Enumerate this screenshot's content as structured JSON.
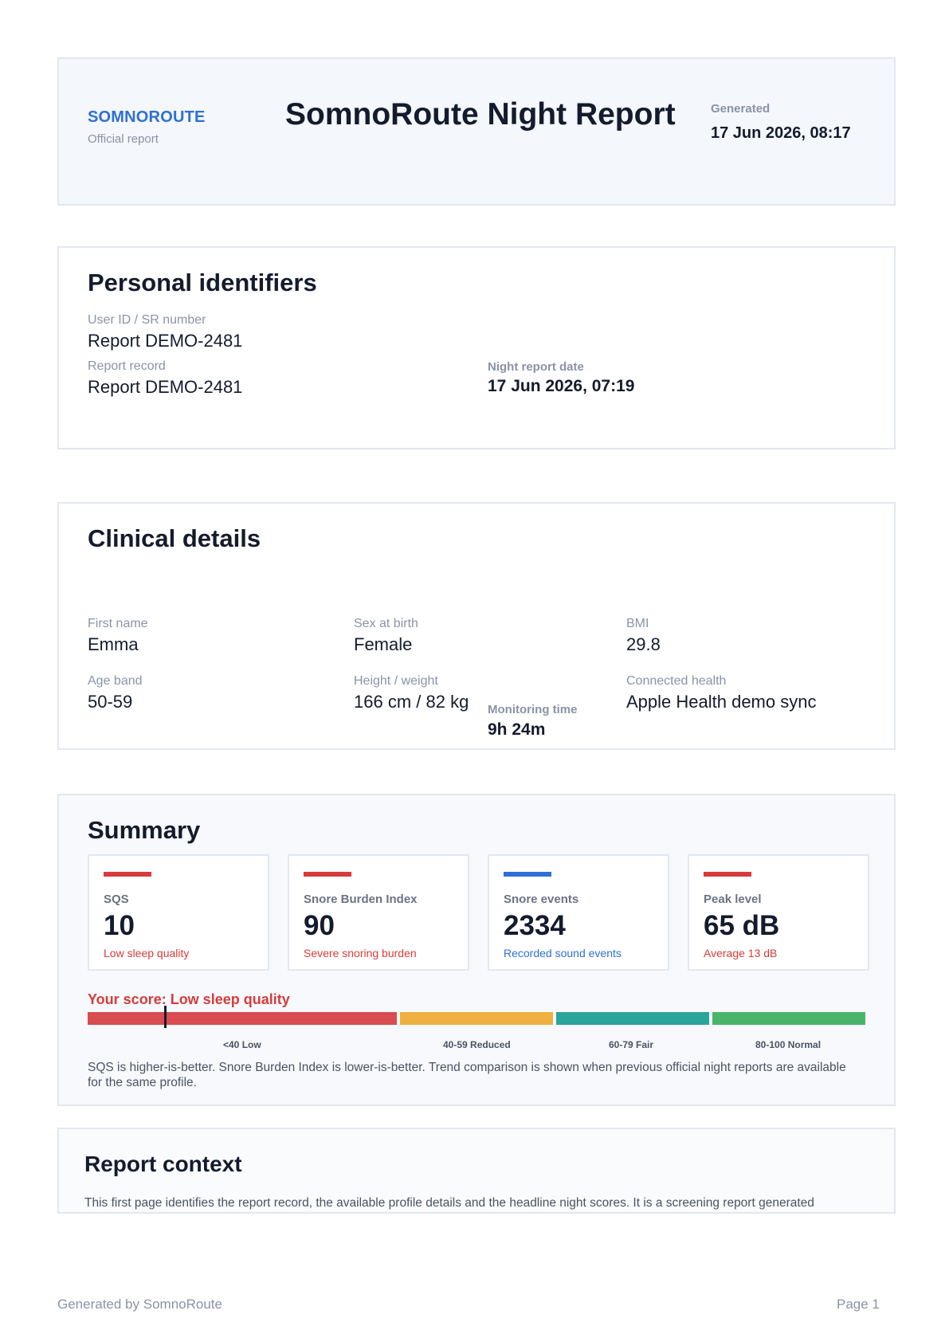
{
  "header": {
    "brand": "SOMNOROUTE",
    "brand_sub": "Official report",
    "title": "SomnoRoute Night Report",
    "generated_label": "Generated",
    "generated_value": "17 Jun 2026, 08:17"
  },
  "personal": {
    "title": "Personal identifiers",
    "user_id_label": "User ID / SR number",
    "user_id_value": "Report DEMO-2481",
    "record_label": "Report record",
    "record_value": "Report DEMO-2481",
    "night_date_label": "Night report date",
    "night_date_value": "17 Jun 2026, 07:19"
  },
  "clinical": {
    "title": "Clinical details",
    "first_name_label": "First name",
    "first_name_value": "Emma",
    "sex_label": "Sex at birth",
    "sex_value": "Female",
    "bmi_label": "BMI",
    "bmi_value": "29.8",
    "age_label": "Age band",
    "age_value": "50-59",
    "hw_label": "Height / weight",
    "hw_value": "166 cm / 82 kg",
    "monitoring_label": "Monitoring time",
    "monitoring_value": "9h 24m",
    "health_label": "Connected health",
    "health_value": "Apple Health demo sync"
  },
  "summary": {
    "title": "Summary",
    "cards": [
      {
        "label": "SQS",
        "value": "10",
        "note": "Low sleep quality",
        "accent": "#d83b3b",
        "note_color": "#d83b3b"
      },
      {
        "label": "Snore Burden Index",
        "value": "90",
        "note": "Severe snoring burden",
        "accent": "#d83b3b",
        "note_color": "#d83b3b"
      },
      {
        "label": "Snore events",
        "value": "2334",
        "note": "Recorded sound events",
        "accent": "#2f6fd6",
        "note_color": "#2f6fd6"
      },
      {
        "label": "Peak level",
        "value": "65 dB",
        "note": "Average 13 dB",
        "accent": "#d83b3b",
        "note_color": "#d83b3b"
      }
    ],
    "score_label": "Your score: Low sleep quality",
    "score_value": 10,
    "ranges": [
      {
        "label": "<40 Low",
        "color": "#d94c4f"
      },
      {
        "label": "40-59 Reduced",
        "color": "#eeb040"
      },
      {
        "label": "60-79 Fair",
        "color": "#2aa59b"
      },
      {
        "label": "80-100 Normal",
        "color": "#4ab56a"
      }
    ],
    "explanation": "SQS is higher-is-better. Snore Burden Index is lower-is-better. Trend comparison is shown when previous official night reports are available for the same profile."
  },
  "context": {
    "title": "Report context",
    "text": "This first page identifies the report record, the available profile details and the headline night scores. It is a screening report generated"
  },
  "footer": {
    "left": "Generated by SomnoRoute",
    "page": "Page 1"
  }
}
